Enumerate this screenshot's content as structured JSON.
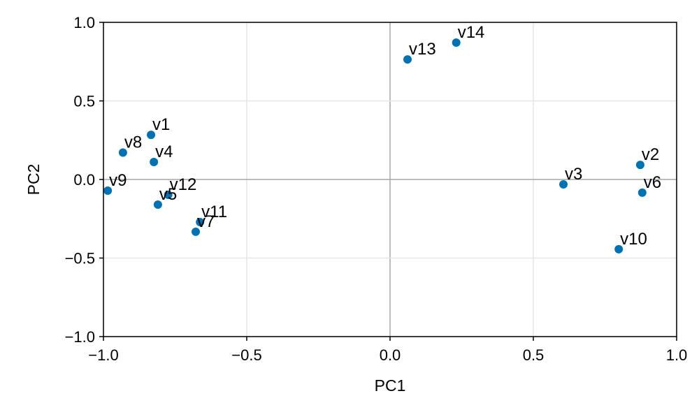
{
  "chart_data": {
    "type": "scatter",
    "xlabel": "PC1",
    "ylabel": "PC2",
    "xlim": [
      -1.0,
      1.0
    ],
    "ylim": [
      -1.0,
      1.0
    ],
    "xticks": [
      -1.0,
      -0.5,
      0.0,
      0.5,
      1.0
    ],
    "yticks": [
      -1.0,
      -0.5,
      0.0,
      0.5,
      1.0
    ],
    "xtick_labels": [
      "−1.0",
      "−0.5",
      "0.0",
      "0.5",
      "1.0"
    ],
    "ytick_labels": [
      "−1.0",
      "−0.5",
      "0.0",
      "0.5",
      "1.0"
    ],
    "grid": true,
    "zero_lines": true,
    "marker_color": "#0072b2",
    "points": [
      {
        "label": "v1",
        "x": -0.834,
        "y": 0.284
      },
      {
        "label": "v2",
        "x": 0.873,
        "y": 0.093
      },
      {
        "label": "v3",
        "x": 0.605,
        "y": -0.031
      },
      {
        "label": "v4",
        "x": -0.824,
        "y": 0.111
      },
      {
        "label": "v5",
        "x": -0.81,
        "y": -0.16
      },
      {
        "label": "v6",
        "x": 0.88,
        "y": -0.084
      },
      {
        "label": "v7",
        "x": -0.678,
        "y": -0.333
      },
      {
        "label": "v8",
        "x": -0.932,
        "y": 0.171
      },
      {
        "label": "v9",
        "x": -0.985,
        "y": -0.071
      },
      {
        "label": "v10",
        "x": 0.798,
        "y": -0.444
      },
      {
        "label": "v11",
        "x": -0.663,
        "y": -0.271
      },
      {
        "label": "v12",
        "x": -0.774,
        "y": -0.098
      },
      {
        "label": "v13",
        "x": 0.061,
        "y": 0.764
      },
      {
        "label": "v14",
        "x": 0.231,
        "y": 0.871
      }
    ]
  }
}
